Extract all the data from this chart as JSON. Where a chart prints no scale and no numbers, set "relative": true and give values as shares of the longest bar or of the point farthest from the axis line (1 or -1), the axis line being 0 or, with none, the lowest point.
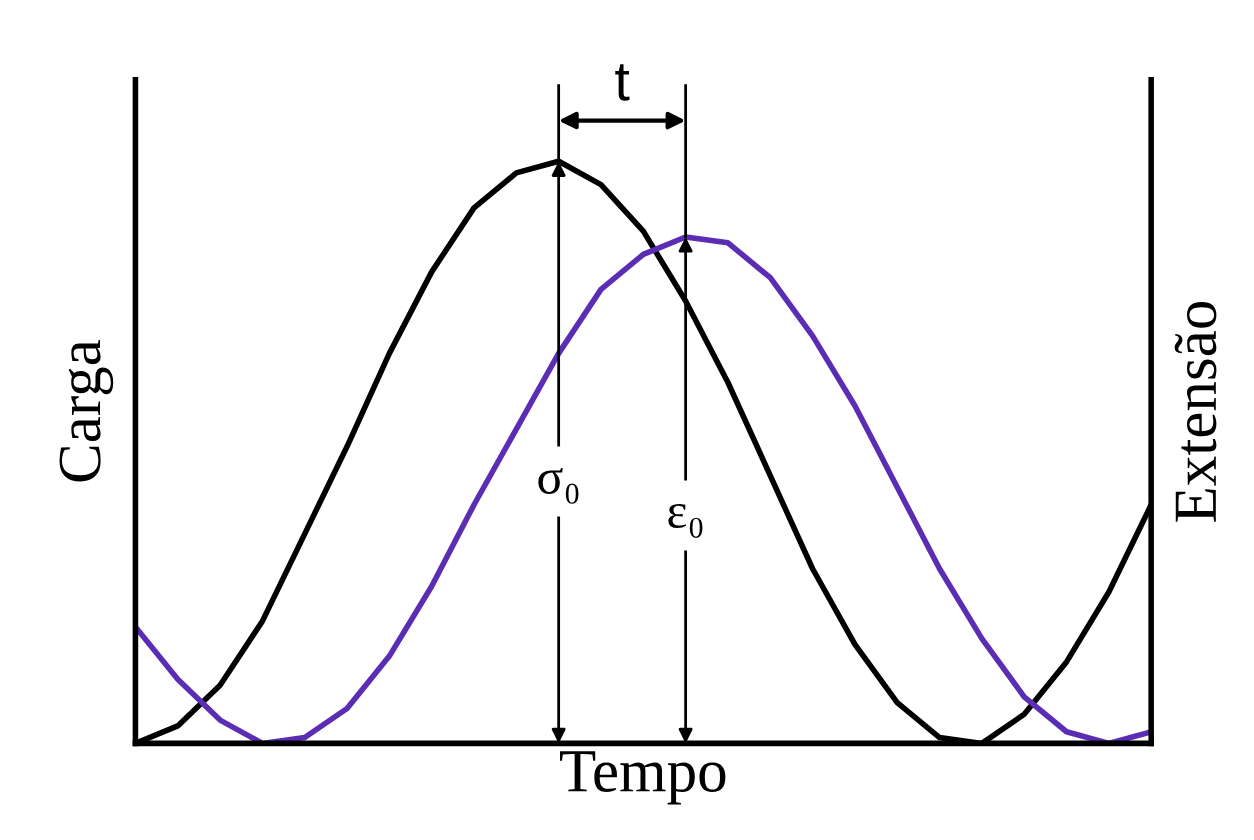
{
  "chart_data": {
    "type": "line",
    "relative": true,
    "xlabel": "Tempo",
    "ylabel": "Carga",
    "y2label": "Extensão",
    "categories": [
      null,
      null,
      null,
      null,
      null,
      null,
      null,
      null,
      null,
      null,
      null,
      null,
      null,
      null,
      null,
      null,
      null,
      null,
      null,
      null,
      null,
      null,
      null,
      null,
      null
    ],
    "series": [
      {
        "color": "#000000",
        "values": [
          0.0,
          0.03,
          0.1,
          0.21,
          0.36,
          0.51,
          0.67,
          0.81,
          0.92,
          0.98,
          1.0,
          0.96,
          0.88,
          0.76,
          0.62,
          0.46,
          0.3,
          0.17,
          0.07,
          0.01,
          0.0,
          0.05,
          0.14,
          0.26,
          0.41
        ]
      },
      {
        "color": "#5a2db4",
        "values": [
          0.2,
          0.11,
          0.04,
          0.0,
          0.01,
          0.06,
          0.15,
          0.27,
          0.41,
          0.54,
          0.67,
          0.78,
          0.84,
          0.87,
          0.86,
          0.8,
          0.7,
          0.58,
          0.44,
          0.3,
          0.18,
          0.08,
          0.02,
          0.0,
          0.02
        ]
      }
    ],
    "annotations": [
      "σ₀",
      "ε₀",
      "t"
    ],
    "legend": false,
    "marker": "none",
    "line_style": "solid"
  }
}
